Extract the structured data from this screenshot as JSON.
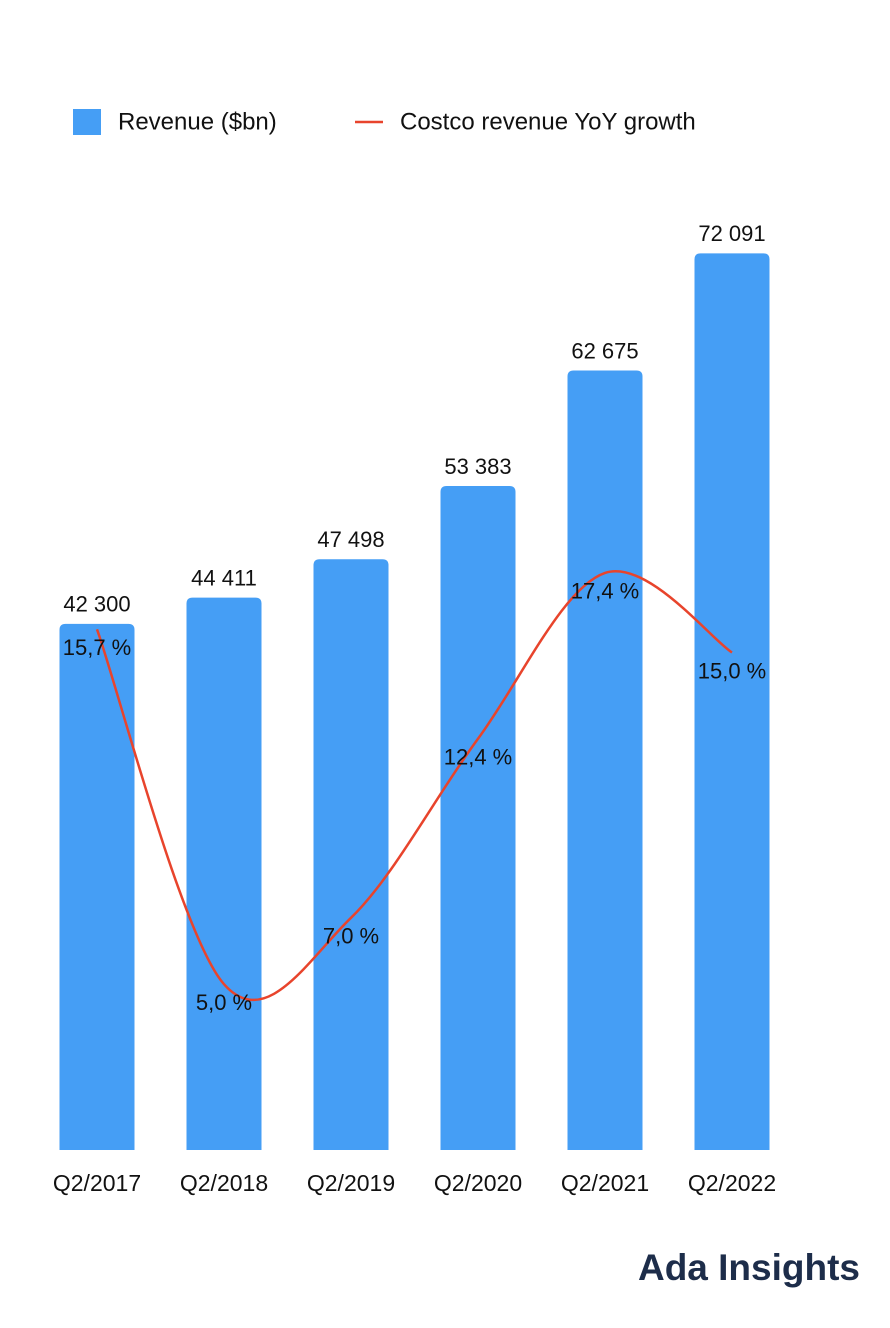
{
  "chart_data": {
    "type": "bar",
    "categories": [
      "Q2/2017",
      "Q2/2018",
      "Q2/2019",
      "Q2/2020",
      "Q2/2021",
      "Q2/2022"
    ],
    "series": [
      {
        "name": "Revenue ($bn)",
        "color": "#459ef5",
        "type": "bar",
        "values": [
          42300,
          44411,
          47498,
          53383,
          62675,
          72091
        ],
        "value_labels": [
          "42 300",
          "44 411",
          "47 498",
          "53 383",
          "62 675",
          "72 091"
        ]
      },
      {
        "name": "Costco revenue YoY growth",
        "color": "#e8442c",
        "type": "line",
        "axis": "y2",
        "values": [
          15.7,
          5.0,
          7.0,
          12.4,
          17.4,
          15.0
        ],
        "value_labels": [
          "15,7 %",
          "5,0 %",
          "7,0 %",
          "12,4 %",
          "17,4 %",
          "15,0 %"
        ]
      }
    ],
    "ylim": [
      0,
      80000
    ],
    "y2lim": [
      0,
      30
    ]
  },
  "brand": "Ada Insights"
}
